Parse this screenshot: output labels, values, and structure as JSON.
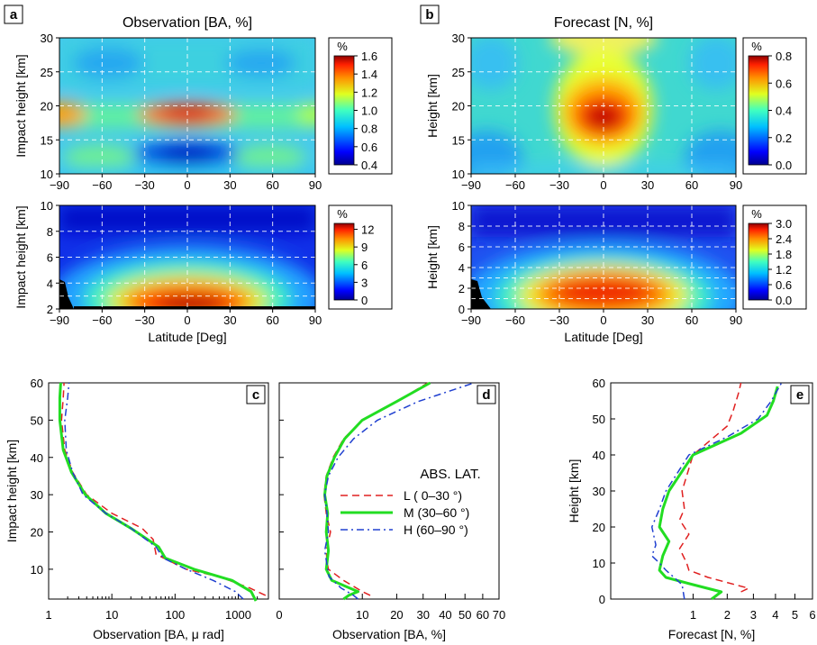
{
  "chart_data": [
    {
      "type": "heatmap",
      "panel": "a",
      "title": "Observation [BA, %]",
      "xlabel": "",
      "ylabel": "Impact height [km]",
      "xlim": [
        -90,
        90
      ],
      "ylim": [
        10,
        30
      ],
      "xticks": [
        "−90",
        "−60",
        "−30",
        "0",
        "30",
        "60",
        "90"
      ],
      "yticks": [
        "10",
        "15",
        "20",
        "25",
        "30"
      ],
      "colorbar": {
        "unit": "%",
        "ticks": [
          "0.4",
          "0.6",
          "0.8",
          "1.0",
          "1.2",
          "1.4",
          "1.6"
        ],
        "range": [
          0.4,
          1.6
        ]
      },
      "features": [
        {
          "lat": 0,
          "height": 18.5,
          "value": 1.5
        },
        {
          "lat": 0,
          "height": 12.5,
          "value": 0.5
        },
        {
          "lat": -90,
          "height": 18.5,
          "value": 1.2
        }
      ]
    },
    {
      "type": "heatmap",
      "panel": "a-lower",
      "xlabel": "Latitude [Deg]",
      "ylabel": "Impact height [km]",
      "xlim": [
        -90,
        90
      ],
      "ylim": [
        2,
        10
      ],
      "xticks": [
        "−90",
        "−60",
        "−30",
        "0",
        "30",
        "60",
        "90"
      ],
      "yticks": [
        "2",
        "4",
        "6",
        "8",
        "10"
      ],
      "colorbar": {
        "unit": "%",
        "ticks": [
          "0",
          "3",
          "6",
          "9",
          "12"
        ],
        "range": [
          0,
          13
        ]
      },
      "features": [
        {
          "lat": 0,
          "height": 2.8,
          "value": 13
        }
      ]
    },
    {
      "type": "heatmap",
      "panel": "b",
      "title": "Forecast [N, %]",
      "xlabel": "",
      "ylabel": "Height [km]",
      "xlim": [
        -90,
        90
      ],
      "ylim": [
        10,
        30
      ],
      "xticks": [
        "−90",
        "−60",
        "−30",
        "0",
        "30",
        "60",
        "90"
      ],
      "yticks": [
        "10",
        "15",
        "20",
        "25",
        "30"
      ],
      "colorbar": {
        "unit": "%",
        "ticks": [
          "0.0",
          "0.2",
          "0.4",
          "0.6",
          "0.8"
        ],
        "range": [
          0,
          0.8
        ]
      },
      "features": [
        {
          "lat": 0,
          "height": 18,
          "value": 0.8
        }
      ]
    },
    {
      "type": "heatmap",
      "panel": "b-lower",
      "xlabel": "Latitude [Deg]",
      "ylabel": "Height [km]",
      "xlim": [
        -90,
        90
      ],
      "ylim": [
        0,
        10
      ],
      "xticks": [
        "−90",
        "−60",
        "−30",
        "0",
        "30",
        "60",
        "90"
      ],
      "yticks": [
        "0",
        "2",
        "4",
        "6",
        "8",
        "10"
      ],
      "colorbar": {
        "unit": "%",
        "ticks": [
          "0.0",
          "0.6",
          "1.2",
          "1.8",
          "2.4",
          "3.0"
        ],
        "range": [
          0,
          3.0
        ]
      },
      "features": [
        {
          "lat": 0,
          "height": 2,
          "value": 3.0
        }
      ]
    },
    {
      "type": "line",
      "panel": "c",
      "xlabel": "Observation [BA, μ rad]",
      "ylabel": "Impact height [km]",
      "xscale": "log",
      "xlim": [
        1,
        3000
      ],
      "ylim": [
        2,
        60
      ],
      "xticks": [
        "1",
        "10",
        "100",
        "1000"
      ],
      "yticks": [
        "10",
        "20",
        "30",
        "40",
        "50",
        "60"
      ],
      "series": [
        {
          "name": "L ( 0–30 °)",
          "color": "#e02020",
          "dash": "dashed",
          "x": [
            2700,
            1500,
            500,
            150,
            50,
            45,
            30,
            10,
            4,
            2.4,
            1.8,
            1.6,
            1.7,
            1.75
          ],
          "y": [
            3,
            5,
            8,
            10,
            14,
            18,
            21,
            25,
            30,
            36,
            42,
            50,
            56,
            60
          ]
        },
        {
          "name": "M (30–60 °)",
          "color": "#22dd22",
          "dash": "solid",
          "x": [
            1900,
            1600,
            800,
            200,
            70,
            55,
            20,
            8,
            3.8,
            2.3,
            1.7,
            1.5,
            1.5,
            1.55
          ],
          "y": [
            1.5,
            4,
            7,
            10,
            13,
            16,
            21,
            25,
            30,
            36,
            42,
            50,
            56,
            60
          ]
        },
        {
          "name": "H (60–90 °)",
          "color": "#2040d0",
          "dash": "dashdot",
          "x": [
            1200,
            900,
            400,
            150,
            65,
            50,
            20,
            8,
            3.5,
            2.4,
            1.9,
            1.8,
            2.0,
            2.1
          ],
          "y": [
            2,
            4,
            7,
            10,
            13,
            16,
            21,
            25,
            30,
            36,
            42,
            50,
            56,
            60
          ]
        }
      ]
    },
    {
      "type": "line",
      "panel": "d",
      "xlabel": "Observation [BA, %]",
      "ylabel": "",
      "xlim": [
        0,
        70
      ],
      "ylim": [
        2,
        60
      ],
      "xticks": [
        "0",
        "10",
        "20",
        "30",
        "40",
        "50",
        "60",
        "70"
      ],
      "legend": {
        "title": "ABS. LAT.",
        "position": "right"
      },
      "series": [
        {
          "name": "L ( 0–30 °)",
          "color": "#e02020",
          "dash": "dashed",
          "x": [
            12,
            10,
            6,
            3.5,
            3.3,
            3.2,
            3.8,
            3.2,
            2.9,
            3.2,
            4.2,
            6,
            10,
            20,
            32
          ],
          "y": [
            3,
            4,
            7,
            10,
            12,
            15,
            20,
            25,
            30,
            35,
            40,
            45,
            50,
            55,
            60
          ]
        },
        {
          "name": "M (30–60 °)",
          "color": "#22dd22",
          "dash": "solid",
          "x": [
            6,
            7,
            9,
            4,
            3.2,
            3.5,
            3.2,
            3.4,
            3.0,
            3.3,
            4.4,
            6.2,
            10,
            20,
            33
          ],
          "y": [
            2,
            3,
            4,
            7,
            10,
            15,
            20,
            25,
            30,
            35,
            40,
            45,
            50,
            55,
            60
          ]
        },
        {
          "name": "H (60–90 °)",
          "color": "#2040d0",
          "dash": "dashdot",
          "x": [
            9,
            8,
            5.5,
            3.6,
            3.4,
            3.0,
            3.5,
            3.3,
            3.0,
            3.5,
            5,
            8,
            14,
            28,
            55
          ],
          "y": [
            2,
            3,
            5,
            8,
            10,
            15,
            20,
            25,
            30,
            35,
            40,
            45,
            50,
            55,
            60
          ]
        }
      ],
      "legend_title": "ABS. LAT."
    },
    {
      "type": "line",
      "panel": "e",
      "xlabel": "Forecast [N, %]",
      "ylabel": "Height [km]",
      "xscale": "sqrt",
      "xlim": [
        0,
        6
      ],
      "ylim": [
        0,
        60
      ],
      "xticks": [
        "1",
        "2",
        "3",
        "4",
        "5",
        "6"
      ],
      "yticks": [
        "0",
        "10",
        "20",
        "30",
        "40",
        "50",
        "60"
      ],
      "series": [
        {
          "name": "L ( 0–30 °)",
          "color": "#e02020",
          "dash": "dashed",
          "x": [
            2.5,
            2.8,
            1.4,
            0.9,
            0.85,
            0.7,
            0.9,
            0.7,
            0.8,
            0.75,
            1.0,
            2.0,
            2.2,
            2.4,
            2.5
          ],
          "y": [
            2,
            3,
            6,
            8,
            10,
            14,
            18,
            22,
            25,
            30,
            40,
            48,
            52,
            57,
            60
          ]
        },
        {
          "name": "M (30–60 °)",
          "color": "#22dd22",
          "dash": "solid",
          "x": [
            1.5,
            1.8,
            1.0,
            0.45,
            0.35,
            0.4,
            0.5,
            0.35,
            0.4,
            0.5,
            1.0,
            2.5,
            3.6,
            3.9,
            4.1
          ],
          "y": [
            0,
            2,
            4,
            6,
            8,
            12,
            16,
            20,
            25,
            30,
            40,
            46,
            51,
            55,
            59
          ]
        },
        {
          "name": "H (60–90 °)",
          "color": "#2040d0",
          "dash": "dashdot",
          "x": [
            0.8,
            0.75,
            0.45,
            0.35,
            0.25,
            0.3,
            0.25,
            0.35,
            0.45,
            0.9,
            2.0,
            3.2,
            3.8,
            4.3
          ],
          "y": [
            0,
            4,
            8,
            10,
            12,
            15,
            20,
            25,
            30,
            40,
            45,
            50,
            55,
            60
          ]
        }
      ]
    }
  ],
  "labels": {
    "panel_a": "a",
    "panel_b": "b",
    "panel_c": "c",
    "panel_d": "d",
    "panel_e": "e",
    "title_a": "Observation [BA, %]",
    "title_b": "Forecast [N, %]",
    "ylabel_a": "Impact height [km]",
    "ylabel_b": "Height [km]",
    "xlabel_lat": "Latitude [Deg]",
    "xlabel_c": "Observation [BA, μ rad]",
    "xlabel_d": "Observation [BA, %]",
    "xlabel_e": "Forecast [N, %]",
    "unit": "%",
    "legend_title": "ABS. LAT.",
    "legend_L": "L  (  0–30 °)",
    "legend_M": "M (30–60 °)",
    "legend_H": "H (60–90 °)"
  },
  "colors": {
    "L": "#e02020",
    "M": "#22dd22",
    "H": "#2040d0"
  }
}
